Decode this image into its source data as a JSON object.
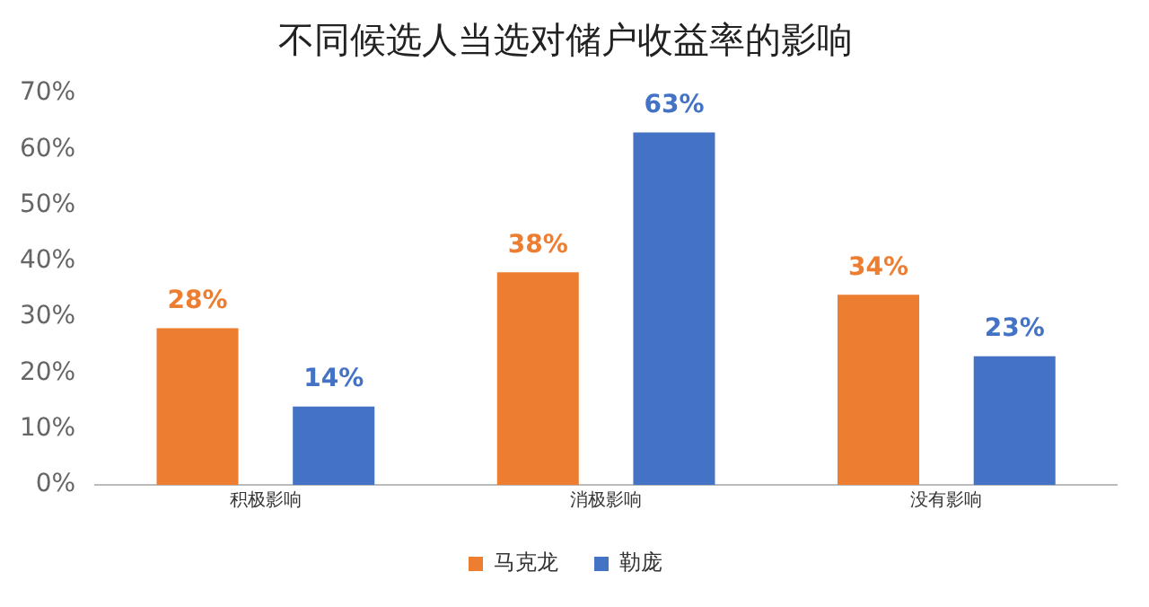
{
  "chart_data": {
    "type": "bar",
    "title": "不同候选人当选对储户收益率的影响",
    "categories": [
      "积极影响",
      "消极影响",
      "没有影响"
    ],
    "series": [
      {
        "name": "马克龙",
        "color": "#ed7d31",
        "values": [
          28,
          38,
          34
        ],
        "value_labels": [
          "28%",
          "38%",
          "34%"
        ]
      },
      {
        "name": "勒庞",
        "color": "#4472c4",
        "values": [
          14,
          63,
          23
        ],
        "value_labels": [
          "14%",
          "63%",
          "23%"
        ]
      }
    ],
    "ylim": [
      0,
      70
    ],
    "yticks": [
      {
        "value": 0,
        "label": "0%"
      },
      {
        "value": 10,
        "label": "10%"
      },
      {
        "value": 20,
        "label": "20%"
      },
      {
        "value": 30,
        "label": "30%"
      },
      {
        "value": 40,
        "label": "40%"
      },
      {
        "value": 50,
        "label": "50%"
      },
      {
        "value": 60,
        "label": "60%"
      },
      {
        "value": 70,
        "label": "70%"
      }
    ],
    "grid": false,
    "legend": "bottom"
  }
}
